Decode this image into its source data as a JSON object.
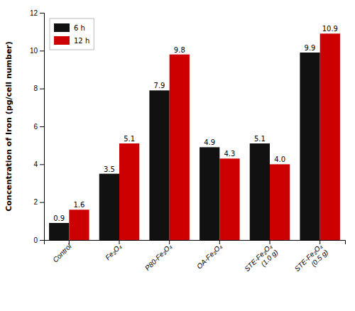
{
  "chart_data": {
    "type": "bar",
    "categories": [
      "Control",
      "Fe₃O₄",
      "P80-Fe₃O₄",
      "OA-Fe₃O₄",
      "STE-Fe₃O₄\n(1.0 g)",
      "STE-Fe₃O₄\n(0.5 g)"
    ],
    "series": [
      {
        "name": "6 h",
        "color": "#111111",
        "values": [
          0.9,
          3.5,
          7.9,
          4.9,
          5.1,
          9.9
        ],
        "value_labels": [
          "0.9",
          "3.5",
          "7.9",
          "4.9",
          "5.1",
          "9.9"
        ]
      },
      {
        "name": "12 h",
        "color": "#cc0000",
        "values": [
          1.6,
          5.1,
          9.8,
          4.3,
          4.0,
          10.9
        ],
        "value_labels": [
          "1.6",
          "5.1",
          "9.8",
          "4.3",
          "4.0",
          "10.9"
        ]
      }
    ],
    "ylabel": "Concentration of Iron (pg/cell number)",
    "ylim": [
      0,
      12
    ],
    "yticks": [
      0,
      2,
      4,
      6,
      8,
      10,
      12
    ],
    "legend": "upper left",
    "data_labels": true
  }
}
